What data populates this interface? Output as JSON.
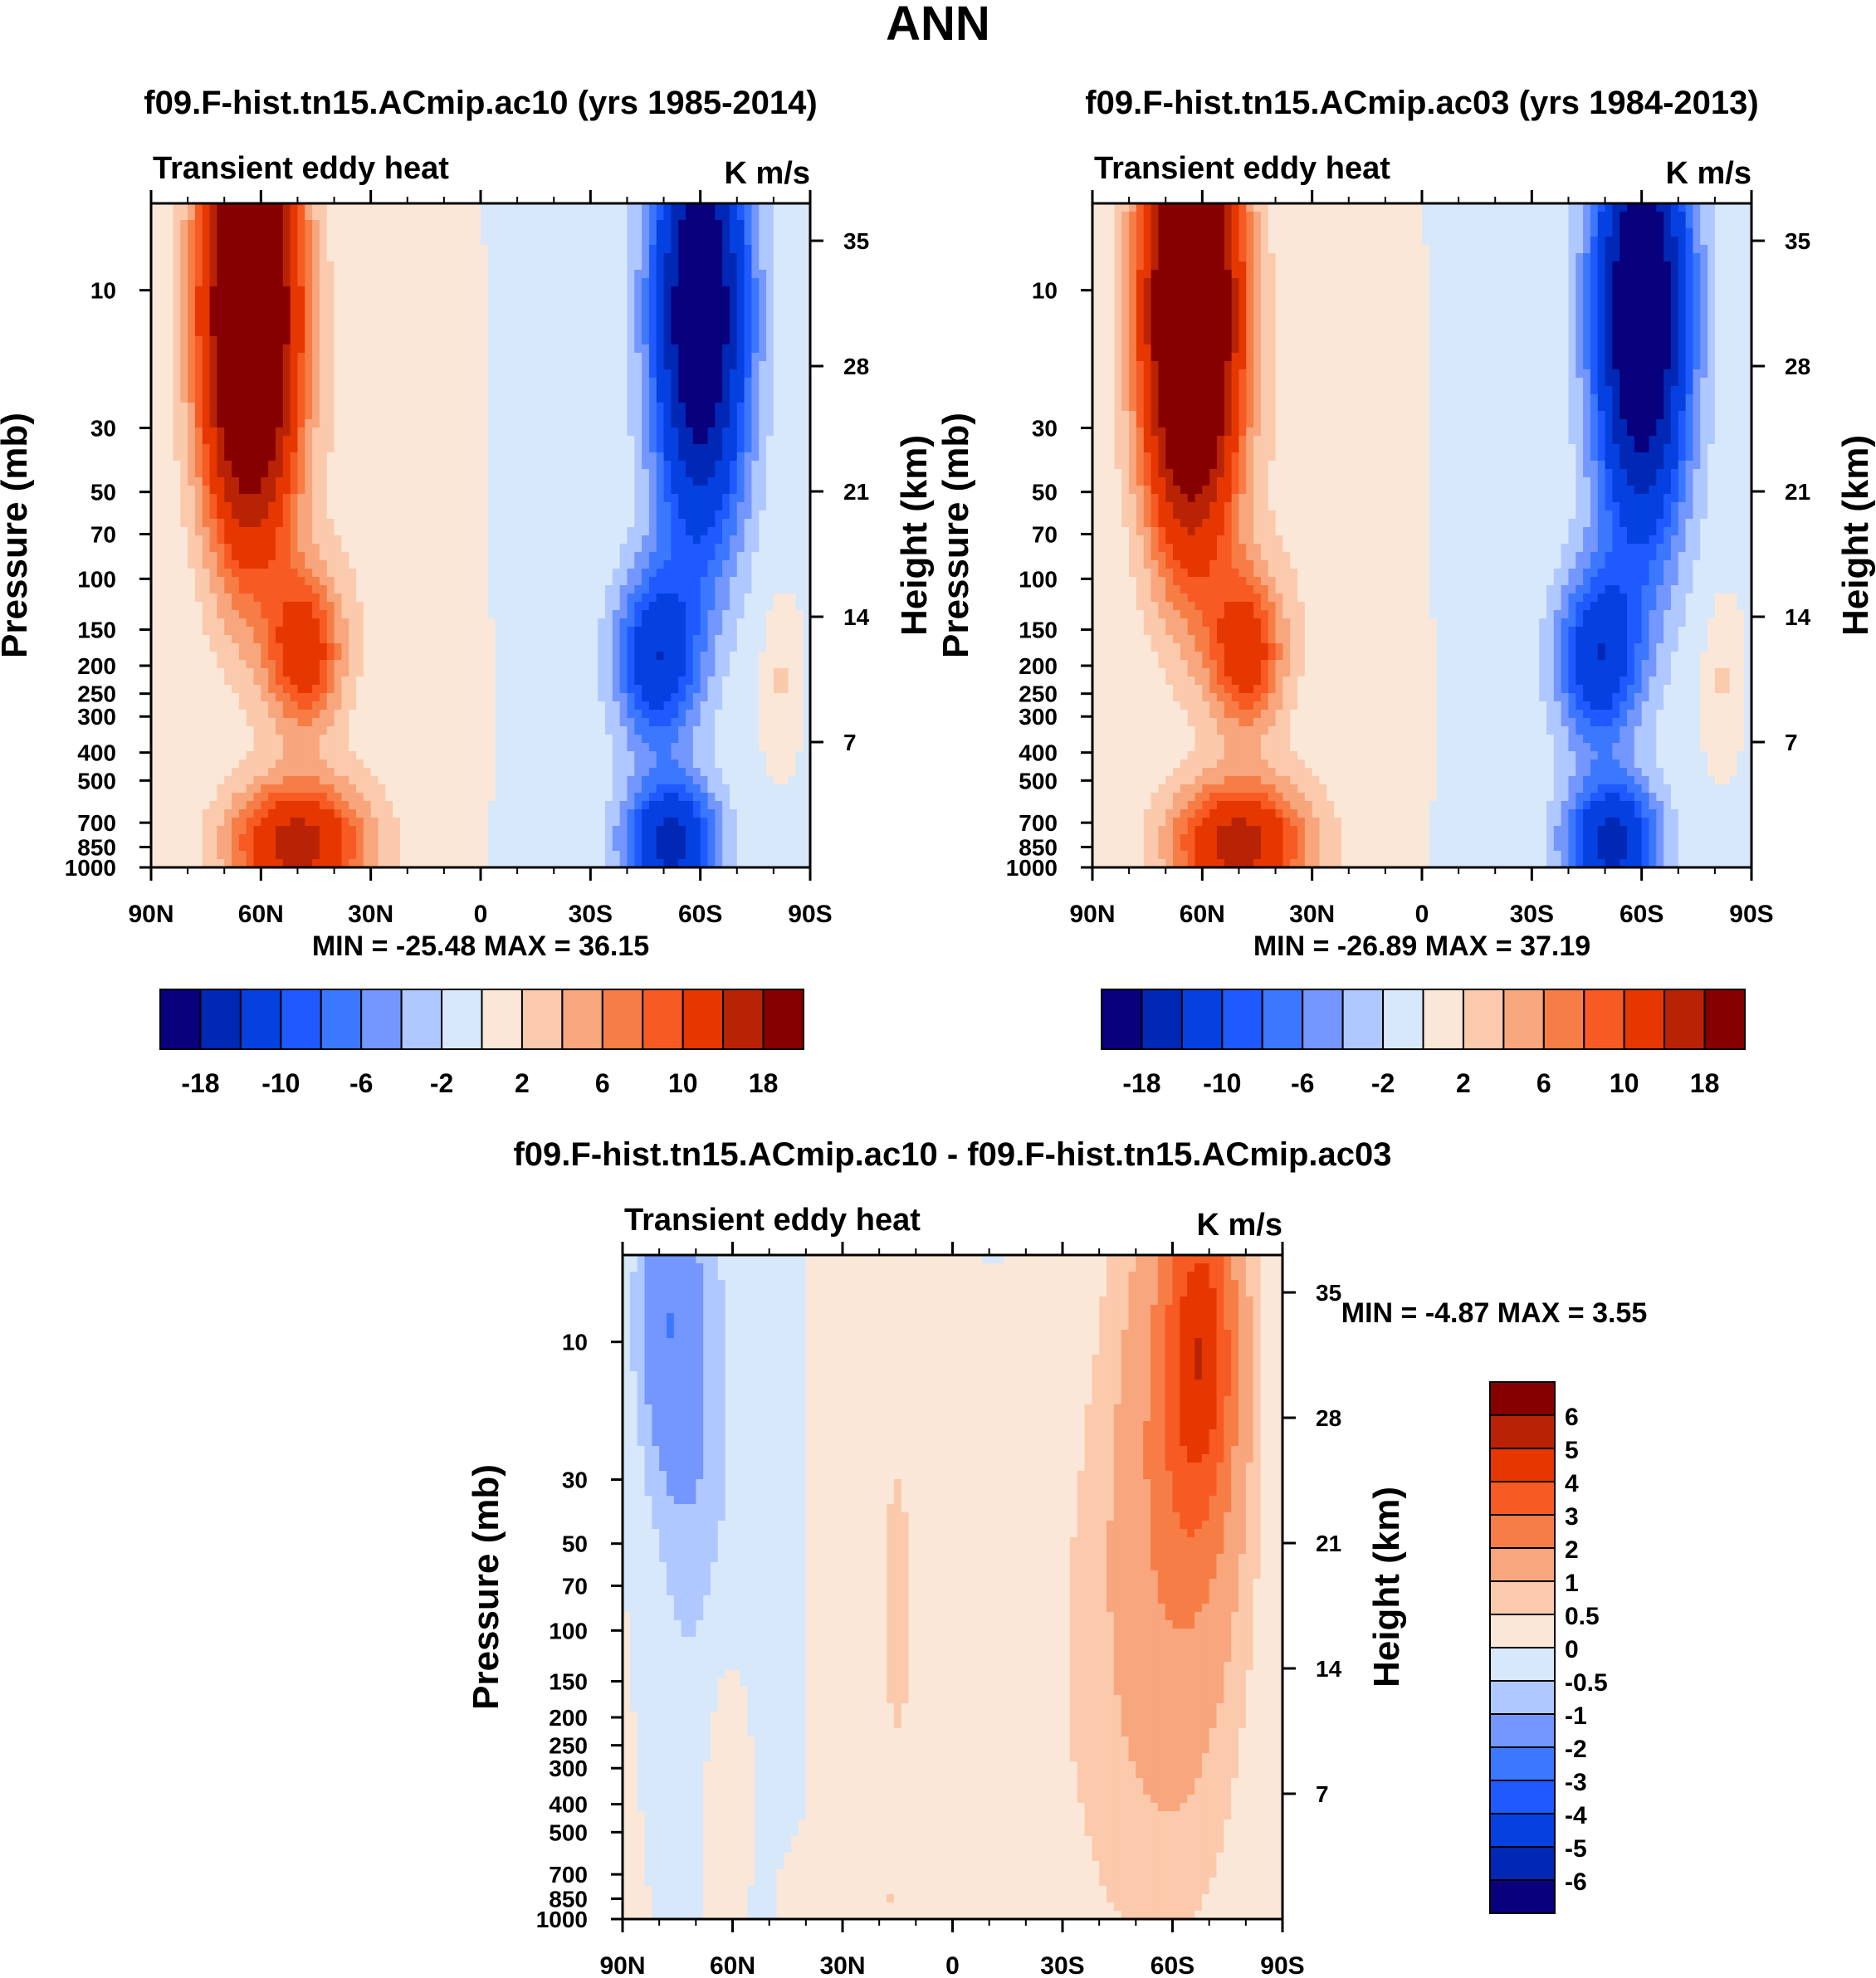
{
  "figure": {
    "season": "ANN"
  },
  "palettes": {
    "full": [
      "#08007d",
      "#0028b4",
      "#0541e1",
      "#1e5aff",
      "#3c78ff",
      "#7396ff",
      "#afc8ff",
      "#d7e8fa",
      "#fbe7d7",
      "#fbc9ab",
      "#f7a67d",
      "#f77d46",
      "#f75a23",
      "#e63700",
      "#b92305",
      "#870000"
    ],
    "diff": [
      "#08007d",
      "#0028b4",
      "#0541e1",
      "#1e5aff",
      "#3c78ff",
      "#7396ff",
      "#afc8ff",
      "#d7e8fa",
      "#fbe7d7",
      "#fbc9ab",
      "#f7a67d",
      "#f77d46",
      "#f75a23",
      "#e63700",
      "#b92305",
      "#870000"
    ]
  },
  "chart_data": [
    {
      "id": "panel1",
      "type": "heatmap",
      "title": "f09.F-hist.tn15.ACmip.ac10 (yrs 1985-2014)",
      "left_title": "Transient eddy heat",
      "units": "K m/s",
      "xlabel": "",
      "ylabel": "Pressure (mb)",
      "ylabel_right": "Height (km)",
      "x_ticks": [
        "90N",
        "60N",
        "30N",
        "0",
        "30S",
        "60S",
        "90S"
      ],
      "x_tick_lat": [
        90,
        60,
        30,
        0,
        -30,
        -60,
        -90
      ],
      "y_ticks": [
        "10",
        "30",
        "50",
        "70",
        "100",
        "150",
        "200",
        "250",
        "300",
        "400",
        "500",
        "700",
        "850",
        "1000"
      ],
      "y_tick_values": [
        10,
        30,
        50,
        70,
        100,
        150,
        200,
        250,
        300,
        400,
        500,
        700,
        850,
        1000
      ],
      "y_right_ticks": [
        "35",
        "28",
        "21",
        "14",
        "7"
      ],
      "y_right_values": [
        35,
        28,
        21,
        14,
        7
      ],
      "ylim_mb": [
        1000,
        5
      ],
      "xlim_lat": [
        90,
        -90
      ],
      "stats": "MIN = -25.48  MAX =  36.15",
      "colorbar_labels": [
        "-18",
        "-10",
        "-6",
        "-2",
        "2",
        "6",
        "10",
        "18"
      ],
      "scale": 1.0,
      "features": [
        {
          "lat": 63,
          "p": 12,
          "value": 34,
          "wlat": 9,
          "wz": 1.3
        },
        {
          "lat": 48,
          "p": 180,
          "value": 12,
          "wlat": 7,
          "wz": 0.45
        },
        {
          "lat": 50,
          "p": 830,
          "value": 16,
          "wlat": 13,
          "wz": 0.35
        },
        {
          "lat": -60,
          "p": 12,
          "value": -25,
          "wlat": 9,
          "wz": 1.3
        },
        {
          "lat": -48,
          "p": 190,
          "value": -13,
          "wlat": 8,
          "wz": 0.5
        },
        {
          "lat": -52,
          "p": 820,
          "value": -16,
          "wlat": 9,
          "wz": 0.35
        },
        {
          "lat": -82,
          "p": 220,
          "value": 2.4,
          "wlat": 3,
          "wz": 0.35
        },
        {
          "lat": 10,
          "p": 300,
          "value": 1.2,
          "wlat": 6,
          "wz": 0.5
        },
        {
          "lat": 30,
          "p": 50,
          "value": 1.3,
          "wlat": 12,
          "wz": 1.5
        }
      ]
    },
    {
      "id": "panel2",
      "type": "heatmap",
      "title": "f09.F-hist.tn15.ACmip.ac03 (yrs 1984-2013)",
      "left_title": "Transient eddy heat",
      "units": "K m/s",
      "xlabel": "",
      "ylabel": "Pressure (mb)",
      "ylabel_right": "Height (km)",
      "x_ticks": [
        "90N",
        "60N",
        "30N",
        "0",
        "30S",
        "60S",
        "90S"
      ],
      "x_tick_lat": [
        90,
        60,
        30,
        0,
        -30,
        -60,
        -90
      ],
      "y_ticks": [
        "10",
        "30",
        "50",
        "70",
        "100",
        "150",
        "200",
        "250",
        "300",
        "400",
        "500",
        "700",
        "850",
        "1000"
      ],
      "y_tick_values": [
        10,
        30,
        50,
        70,
        100,
        150,
        200,
        250,
        300,
        400,
        500,
        700,
        850,
        1000
      ],
      "y_right_ticks": [
        "35",
        "28",
        "21",
        "14",
        "7"
      ],
      "y_right_values": [
        35,
        28,
        21,
        14,
        7
      ],
      "ylim_mb": [
        1000,
        5
      ],
      "xlim_lat": [
        90,
        -90
      ],
      "stats": "MIN = -26.89  MAX =  37.19",
      "colorbar_labels": [
        "-18",
        "-10",
        "-6",
        "-2",
        "2",
        "6",
        "10",
        "18"
      ],
      "scale": 1.0,
      "features": [
        {
          "lat": 63,
          "p": 12,
          "value": 35,
          "wlat": 9,
          "wz": 1.3
        },
        {
          "lat": 48,
          "p": 180,
          "value": 12,
          "wlat": 7,
          "wz": 0.45
        },
        {
          "lat": 50,
          "p": 830,
          "value": 16,
          "wlat": 13,
          "wz": 0.35
        },
        {
          "lat": -60,
          "p": 12,
          "value": -26,
          "wlat": 9,
          "wz": 1.3
        },
        {
          "lat": -48,
          "p": 190,
          "value": -13,
          "wlat": 8,
          "wz": 0.5
        },
        {
          "lat": -52,
          "p": 820,
          "value": -16,
          "wlat": 9,
          "wz": 0.35
        },
        {
          "lat": -82,
          "p": 220,
          "value": 2.4,
          "wlat": 3,
          "wz": 0.35
        },
        {
          "lat": 10,
          "p": 300,
          "value": 1.2,
          "wlat": 6,
          "wz": 0.5
        },
        {
          "lat": 30,
          "p": 50,
          "value": 1.3,
          "wlat": 12,
          "wz": 1.5
        }
      ]
    },
    {
      "id": "panel3",
      "type": "heatmap",
      "title": "f09.F-hist.tn15.ACmip.ac10 - f09.F-hist.tn15.ACmip.ac03",
      "left_title": "Transient eddy heat",
      "units": "K m/s",
      "xlabel": "",
      "ylabel": "Pressure (mb)",
      "ylabel_right": "Height (km)",
      "x_ticks": [
        "90N",
        "60N",
        "30N",
        "0",
        "30S",
        "60S",
        "90S"
      ],
      "x_tick_lat": [
        90,
        60,
        30,
        0,
        -30,
        -60,
        -90
      ],
      "y_ticks": [
        "10",
        "30",
        "50",
        "70",
        "100",
        "150",
        "200",
        "250",
        "300",
        "400",
        "500",
        "700",
        "850",
        "1000"
      ],
      "y_tick_values": [
        10,
        30,
        50,
        70,
        100,
        150,
        200,
        250,
        300,
        400,
        500,
        700,
        850,
        1000
      ],
      "y_right_ticks": [
        "35",
        "28",
        "21",
        "14",
        "7"
      ],
      "y_right_values": [
        35,
        28,
        21,
        14,
        7
      ],
      "ylim_mb": [
        1000,
        5
      ],
      "xlim_lat": [
        90,
        -90
      ],
      "stats": "MIN =  -4.87  MAX =    3.55",
      "colorbar_labels": [
        "6",
        "5",
        "4",
        "3",
        "2",
        "1",
        "0.5",
        "0",
        "-0.5",
        "-1",
        "-2",
        "-3",
        "-4",
        "-5",
        "-6"
      ],
      "scale": 0.25,
      "features": [
        {
          "lat": 78,
          "p": 8,
          "value": -1.6,
          "wlat": 6,
          "wz": 0.9
        },
        {
          "lat": 70,
          "p": 25,
          "value": -0.8,
          "wlat": 8,
          "wz": 1.6
        },
        {
          "lat": -68,
          "p": 10,
          "value": 3.4,
          "wlat": 7,
          "wz": 1.0
        },
        {
          "lat": -62,
          "p": 25,
          "value": 1.8,
          "wlat": 12,
          "wz": 1.8
        },
        {
          "lat": -45,
          "p": 150,
          "value": 0.6,
          "wlat": 22,
          "wz": 2.0
        },
        {
          "lat": 15,
          "p": 80,
          "value": 0.5,
          "wlat": 6,
          "wz": 1.8
        },
        {
          "lat": 63,
          "p": 250,
          "value": 0.4,
          "wlat": 5,
          "wz": 1.0
        },
        {
          "lat": 25,
          "p": 900,
          "value": 0.3,
          "wlat": 12,
          "wz": 0.3
        }
      ]
    }
  ]
}
